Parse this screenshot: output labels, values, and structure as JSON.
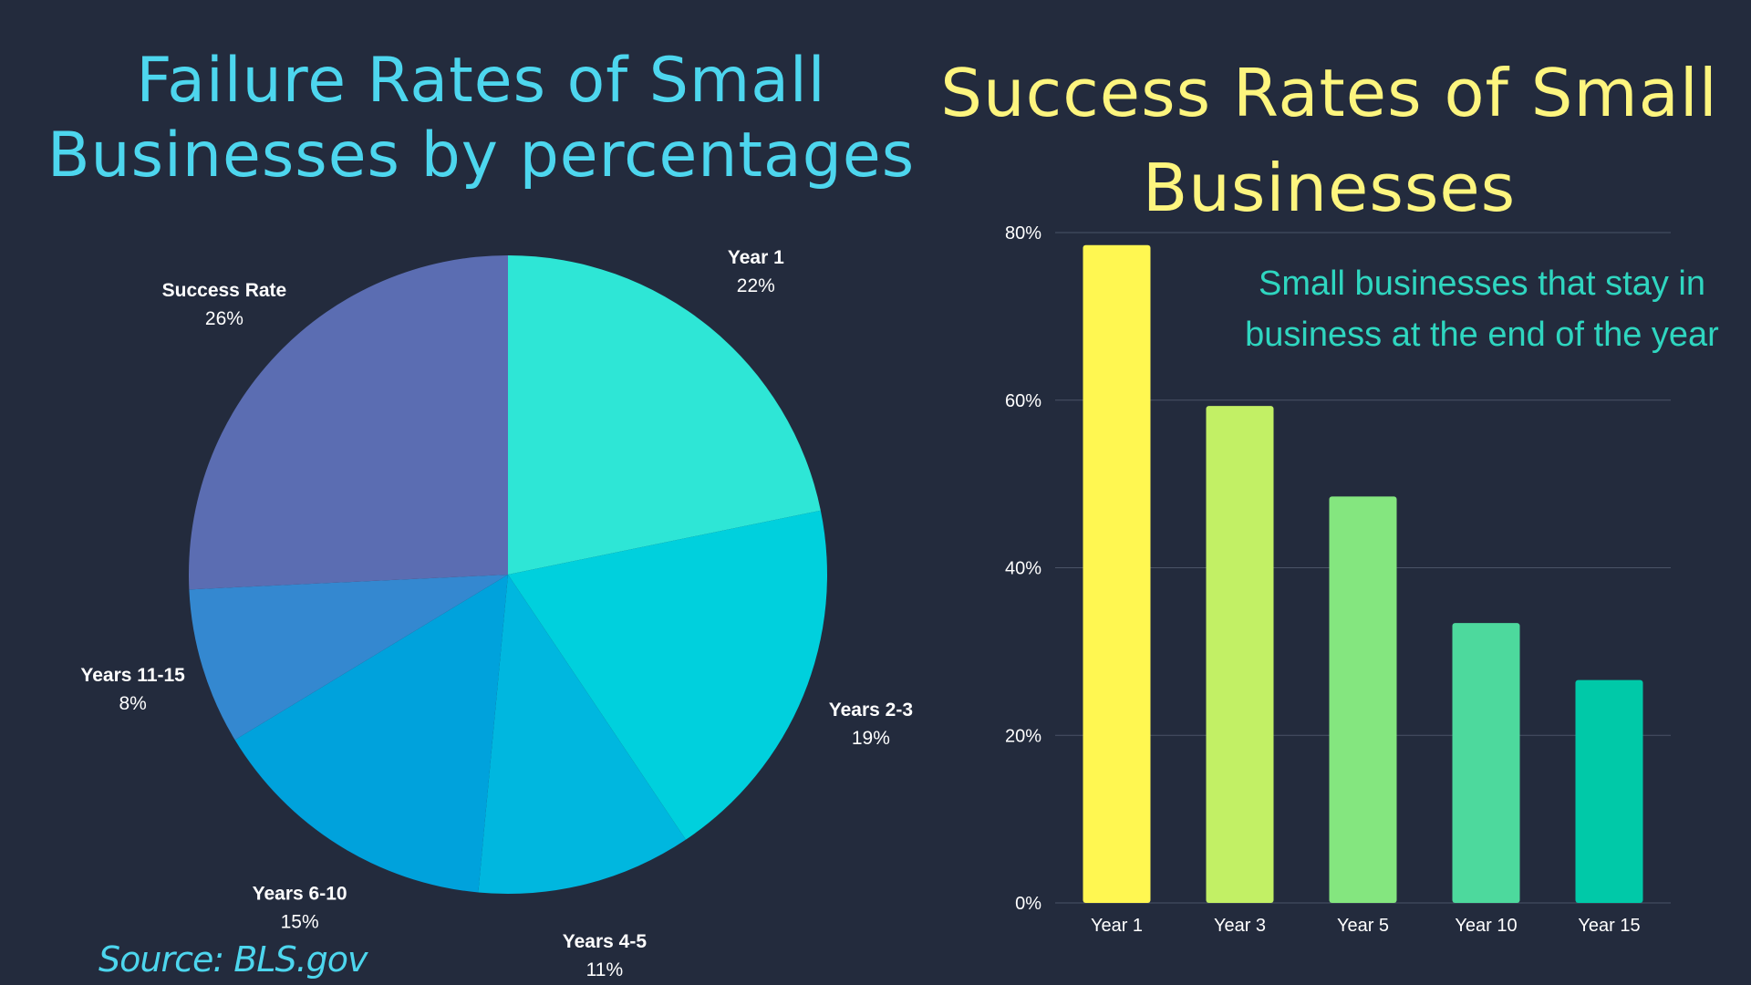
{
  "chart_data": [
    {
      "type": "pie",
      "title": "Failure Rates of Small Businesses by percentages",
      "slices": [
        {
          "label": "Year 1",
          "value": 22,
          "value_label": "22%",
          "color": "#2ee6d6"
        },
        {
          "label": "Years 2-3",
          "value": 19,
          "value_label": "19%",
          "color": "#00d0dd"
        },
        {
          "label": "Years 4-5",
          "value": 11,
          "value_label": "11%",
          "color": "#00b7df"
        },
        {
          "label": "Years 6-10",
          "value": 15,
          "value_label": "15%",
          "color": "#00a2dc"
        },
        {
          "label": "Years 11-15",
          "value": 8,
          "value_label": "8%",
          "color": "#3488d0"
        },
        {
          "label": "Success Rate",
          "value": 26,
          "value_label": "26%",
          "color": "#5b6db2"
        }
      ]
    },
    {
      "type": "bar",
      "title": "Success Rates of Small Businesses",
      "annotation": "Small businesses that stay in business at the end of the year",
      "categories": [
        "Year 1",
        "Year 3",
        "Year 5",
        "Year 10",
        "Year 15"
      ],
      "values": [
        78.5,
        59.3,
        48.5,
        33.4,
        26.6
      ],
      "colors": [
        "#fff751",
        "#c2f065",
        "#84e67f",
        "#4dd99d",
        "#00c9a8"
      ],
      "ylim": [
        0,
        80
      ],
      "yticks": [
        0,
        20,
        40,
        60,
        80
      ],
      "ytick_labels": [
        "0%",
        "20%",
        "40%",
        "60%",
        "80%"
      ],
      "grid": true,
      "grid_color": "#4a5366"
    }
  ],
  "source": "Source: BLS.gov"
}
